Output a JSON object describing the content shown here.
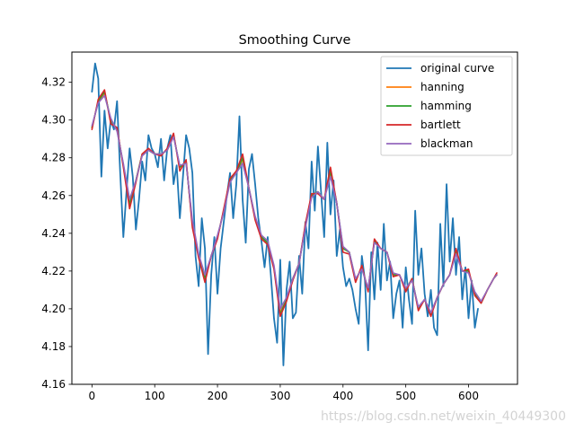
{
  "chart_data": {
    "type": "line",
    "title": "Smoothing Curve",
    "xlabel": "",
    "ylabel": "",
    "xlim": [
      -32,
      678
    ],
    "ylim": [
      4.16,
      4.336
    ],
    "xticks": [
      0,
      100,
      200,
      300,
      400,
      500,
      600
    ],
    "xtick_labels": [
      "0",
      "100",
      "200",
      "300",
      "400",
      "500",
      "600"
    ],
    "yticks": [
      4.16,
      4.18,
      4.2,
      4.22,
      4.24,
      4.26,
      4.28,
      4.3,
      4.32
    ],
    "ytick_labels": [
      "4.16",
      "4.18",
      "4.20",
      "4.22",
      "4.24",
      "4.26",
      "4.28",
      "4.30",
      "4.32"
    ],
    "grid": false,
    "legend_position": "top-right",
    "series": [
      {
        "name": "original curve",
        "color": "#1f77b4",
        "x": [
          0,
          5,
          10,
          15,
          20,
          25,
          30,
          35,
          40,
          45,
          50,
          55,
          60,
          65,
          70,
          75,
          80,
          85,
          90,
          95,
          100,
          105,
          110,
          115,
          120,
          125,
          130,
          135,
          140,
          145,
          150,
          155,
          160,
          165,
          170,
          175,
          180,
          185,
          190,
          195,
          200,
          205,
          210,
          215,
          220,
          225,
          230,
          235,
          240,
          245,
          250,
          255,
          260,
          265,
          270,
          275,
          280,
          285,
          290,
          295,
          300,
          305,
          310,
          315,
          320,
          325,
          330,
          335,
          340,
          345,
          350,
          355,
          360,
          365,
          370,
          375,
          380,
          385,
          390,
          395,
          400,
          405,
          410,
          415,
          420,
          425,
          430,
          435,
          440,
          445,
          450,
          455,
          460,
          465,
          470,
          475,
          480,
          485,
          490,
          495,
          500,
          505,
          510,
          515,
          520,
          525,
          530,
          535,
          540,
          545,
          550,
          555,
          560,
          565,
          570,
          575,
          580,
          585,
          590,
          595,
          600,
          605,
          610,
          615
        ],
        "y": [
          4.315,
          4.33,
          4.322,
          4.27,
          4.305,
          4.285,
          4.3,
          4.295,
          4.31,
          4.272,
          4.238,
          4.262,
          4.285,
          4.27,
          4.242,
          4.258,
          4.278,
          4.268,
          4.292,
          4.285,
          4.282,
          4.275,
          4.29,
          4.268,
          4.285,
          4.292,
          4.266,
          4.276,
          4.248,
          4.27,
          4.292,
          4.285,
          4.272,
          4.228,
          4.212,
          4.248,
          4.232,
          4.176,
          4.218,
          4.238,
          4.208,
          4.232,
          4.246,
          4.26,
          4.272,
          4.248,
          4.266,
          4.302,
          4.258,
          4.235,
          4.274,
          4.282,
          4.266,
          4.248,
          4.236,
          4.222,
          4.238,
          4.218,
          4.195,
          4.182,
          4.226,
          4.17,
          4.21,
          4.225,
          4.195,
          4.198,
          4.228,
          4.208,
          4.246,
          4.232,
          4.278,
          4.252,
          4.286,
          4.262,
          4.238,
          4.288,
          4.25,
          4.268,
          4.228,
          4.242,
          4.222,
          4.212,
          4.216,
          4.21,
          4.2,
          4.192,
          4.228,
          4.215,
          4.178,
          4.23,
          4.205,
          4.235,
          4.21,
          4.245,
          4.215,
          4.225,
          4.195,
          4.208,
          4.215,
          4.19,
          4.222,
          4.205,
          4.192,
          4.252,
          4.218,
          4.232,
          4.208,
          4.196,
          4.21,
          4.19,
          4.186,
          4.245,
          4.212,
          4.266,
          4.225,
          4.248,
          4.218,
          4.238,
          4.205,
          4.222,
          4.195,
          4.215,
          4.19,
          4.2
        ]
      },
      {
        "name": "hanning",
        "color": "#ff7f0e",
        "x": [
          0,
          10,
          20,
          30,
          40,
          50,
          60,
          70,
          80,
          90,
          100,
          110,
          120,
          130,
          140,
          150,
          160,
          170,
          180,
          190,
          200,
          210,
          220,
          230,
          240,
          250,
          260,
          270,
          280,
          290,
          300,
          310,
          320,
          330,
          340,
          350,
          360,
          370,
          380,
          390,
          400,
          410,
          420,
          430,
          440,
          450,
          460,
          470,
          480,
          490,
          500,
          510,
          520,
          530,
          540,
          550,
          560,
          570,
          580,
          590,
          600,
          610,
          620,
          630,
          640,
          645
        ],
        "y": [
          4.296,
          4.31,
          4.314,
          4.3,
          4.295,
          4.276,
          4.256,
          4.268,
          4.282,
          4.284,
          4.282,
          4.282,
          4.284,
          4.292,
          4.275,
          4.278,
          4.245,
          4.228,
          4.216,
          4.228,
          4.238,
          4.252,
          4.268,
          4.272,
          4.279,
          4.264,
          4.248,
          4.238,
          4.235,
          4.222,
          4.198,
          4.205,
          4.216,
          4.224,
          4.244,
          4.26,
          4.262,
          4.258,
          4.272,
          4.256,
          4.232,
          4.23,
          4.215,
          4.222,
          4.21,
          4.236,
          4.232,
          4.23,
          4.218,
          4.218,
          4.21,
          4.216,
          4.2,
          4.205,
          4.197,
          4.206,
          4.213,
          4.218,
          4.23,
          4.22,
          4.22,
          4.208,
          4.203,
          4.21,
          4.216,
          4.218
        ]
      },
      {
        "name": "hamming",
        "color": "#2ca02c",
        "x": [
          0,
          10,
          20,
          30,
          40,
          50,
          60,
          70,
          80,
          90,
          100,
          110,
          120,
          130,
          140,
          150,
          160,
          170,
          180,
          190,
          200,
          210,
          220,
          230,
          240,
          250,
          260,
          270,
          280,
          290,
          300,
          310,
          320,
          330,
          340,
          350,
          360,
          370,
          380,
          390,
          400,
          410,
          420,
          430,
          440,
          450,
          460,
          470,
          480,
          490,
          500,
          510,
          520,
          530,
          540,
          550,
          560,
          570,
          580,
          590,
          600,
          610,
          620,
          630,
          640,
          645
        ],
        "y": [
          4.296,
          4.31,
          4.315,
          4.3,
          4.295,
          4.276,
          4.255,
          4.268,
          4.282,
          4.284,
          4.282,
          4.282,
          4.284,
          4.292,
          4.275,
          4.278,
          4.245,
          4.228,
          4.216,
          4.228,
          4.238,
          4.252,
          4.268,
          4.272,
          4.28,
          4.264,
          4.248,
          4.238,
          4.235,
          4.222,
          4.197,
          4.205,
          4.216,
          4.224,
          4.244,
          4.26,
          4.262,
          4.258,
          4.273,
          4.256,
          4.232,
          4.23,
          4.215,
          4.222,
          4.21,
          4.236,
          4.232,
          4.23,
          4.218,
          4.218,
          4.21,
          4.216,
          4.2,
          4.205,
          4.197,
          4.206,
          4.213,
          4.218,
          4.231,
          4.22,
          4.22,
          4.208,
          4.203,
          4.21,
          4.216,
          4.218
        ]
      },
      {
        "name": "bartlett",
        "color": "#d62728",
        "x": [
          0,
          10,
          20,
          30,
          40,
          50,
          60,
          70,
          80,
          90,
          100,
          110,
          120,
          130,
          140,
          150,
          160,
          170,
          180,
          190,
          200,
          210,
          220,
          230,
          240,
          250,
          260,
          270,
          280,
          290,
          300,
          310,
          320,
          330,
          340,
          350,
          360,
          370,
          380,
          390,
          400,
          410,
          420,
          430,
          440,
          450,
          460,
          470,
          480,
          490,
          500,
          510,
          520,
          530,
          540,
          550,
          560,
          570,
          580,
          590,
          600,
          610,
          620,
          630,
          640,
          645
        ],
        "y": [
          4.295,
          4.311,
          4.316,
          4.298,
          4.296,
          4.275,
          4.253,
          4.267,
          4.282,
          4.285,
          4.282,
          4.281,
          4.285,
          4.293,
          4.273,
          4.279,
          4.243,
          4.227,
          4.214,
          4.228,
          4.237,
          4.253,
          4.269,
          4.273,
          4.282,
          4.264,
          4.247,
          4.237,
          4.234,
          4.221,
          4.196,
          4.204,
          4.215,
          4.224,
          4.245,
          4.261,
          4.261,
          4.258,
          4.275,
          4.256,
          4.23,
          4.229,
          4.214,
          4.223,
          4.209,
          4.237,
          4.232,
          4.23,
          4.217,
          4.218,
          4.209,
          4.216,
          4.199,
          4.205,
          4.196,
          4.206,
          4.213,
          4.218,
          4.232,
          4.22,
          4.221,
          4.207,
          4.203,
          4.21,
          4.216,
          4.219
        ]
      },
      {
        "name": "blackman",
        "color": "#9467bd",
        "x": [
          0,
          10,
          20,
          30,
          40,
          50,
          60,
          70,
          80,
          90,
          100,
          110,
          120,
          130,
          140,
          150,
          160,
          170,
          180,
          190,
          200,
          210,
          220,
          230,
          240,
          250,
          260,
          270,
          280,
          290,
          300,
          310,
          320,
          330,
          340,
          350,
          360,
          370,
          380,
          390,
          400,
          410,
          420,
          430,
          440,
          450,
          460,
          470,
          480,
          490,
          500,
          510,
          520,
          530,
          540,
          550,
          560,
          570,
          580,
          590,
          600,
          610,
          620,
          630,
          640,
          645
        ],
        "y": [
          4.297,
          4.309,
          4.313,
          4.301,
          4.294,
          4.277,
          4.258,
          4.268,
          4.281,
          4.284,
          4.282,
          4.282,
          4.284,
          4.291,
          4.276,
          4.277,
          4.247,
          4.229,
          4.218,
          4.228,
          4.239,
          4.251,
          4.267,
          4.272,
          4.277,
          4.264,
          4.249,
          4.239,
          4.236,
          4.223,
          4.2,
          4.206,
          4.216,
          4.224,
          4.243,
          4.259,
          4.262,
          4.258,
          4.27,
          4.256,
          4.233,
          4.23,
          4.216,
          4.221,
          4.211,
          4.235,
          4.232,
          4.23,
          4.219,
          4.218,
          4.211,
          4.215,
          4.201,
          4.205,
          4.198,
          4.206,
          4.213,
          4.218,
          4.229,
          4.22,
          4.219,
          4.209,
          4.204,
          4.21,
          4.216,
          4.218
        ]
      }
    ]
  },
  "watermark": "https://blog.csdn.net/weixin_40449300"
}
